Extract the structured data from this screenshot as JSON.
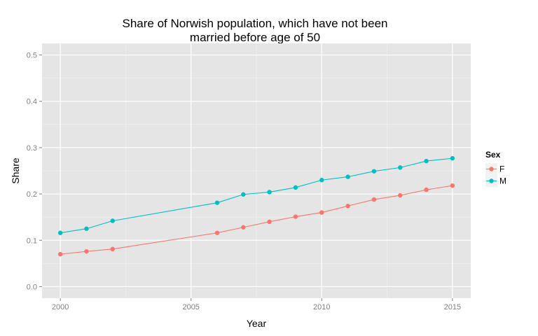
{
  "chart_data": {
    "type": "line",
    "title": "Share of Norwish population, which have not been married before age of 50",
    "title_lines": [
      "Share of Norwish population, which have not been",
      "married before age of 50"
    ],
    "xlabel": "Year",
    "ylabel": "Share",
    "xlim": [
      1999.3,
      2015.7
    ],
    "ylim": [
      -0.025,
      0.525
    ],
    "x_ticks": [
      2000,
      2005,
      2010,
      2015
    ],
    "x_tick_labels": [
      "2000",
      "2005",
      "2010",
      "2015"
    ],
    "y_ticks": [
      0.0,
      0.1,
      0.2,
      0.3,
      0.4,
      0.5
    ],
    "y_tick_labels": [
      "0.0",
      "0.1",
      "0.2",
      "0.3",
      "0.4",
      "0.5"
    ],
    "grid": true,
    "legend": {
      "title": "Sex",
      "placement": "right"
    },
    "series": [
      {
        "name": "F",
        "color": "#F8766D",
        "points": [
          {
            "x": 2000,
            "y": 0.07
          },
          {
            "x": 2001,
            "y": 0.076
          },
          {
            "x": 2002,
            "y": 0.081
          },
          {
            "x": 2006,
            "y": 0.116
          },
          {
            "x": 2007,
            "y": 0.128
          },
          {
            "x": 2008,
            "y": 0.14
          },
          {
            "x": 2009,
            "y": 0.151
          },
          {
            "x": 2010,
            "y": 0.16
          },
          {
            "x": 2011,
            "y": 0.174
          },
          {
            "x": 2012,
            "y": 0.188
          },
          {
            "x": 2013,
            "y": 0.197
          },
          {
            "x": 2014,
            "y": 0.209
          },
          {
            "x": 2015,
            "y": 0.218
          }
        ]
      },
      {
        "name": "M",
        "color": "#00BFC4",
        "points": [
          {
            "x": 2000,
            "y": 0.116
          },
          {
            "x": 2001,
            "y": 0.125
          },
          {
            "x": 2002,
            "y": 0.142
          },
          {
            "x": 2006,
            "y": 0.181
          },
          {
            "x": 2007,
            "y": 0.199
          },
          {
            "x": 2008,
            "y": 0.204
          },
          {
            "x": 2009,
            "y": 0.214
          },
          {
            "x": 2010,
            "y": 0.23
          },
          {
            "x": 2011,
            "y": 0.237
          },
          {
            "x": 2012,
            "y": 0.249
          },
          {
            "x": 2013,
            "y": 0.257
          },
          {
            "x": 2014,
            "y": 0.271
          },
          {
            "x": 2015,
            "y": 0.277
          }
        ]
      }
    ],
    "colors": {
      "panel_background": "#E5E5E5",
      "major_grid": "#FFFFFF",
      "minor_grid": "#F2F2F2",
      "tick_text": "#7F7F7F",
      "legend_key_background": "#F2F2F2"
    }
  }
}
